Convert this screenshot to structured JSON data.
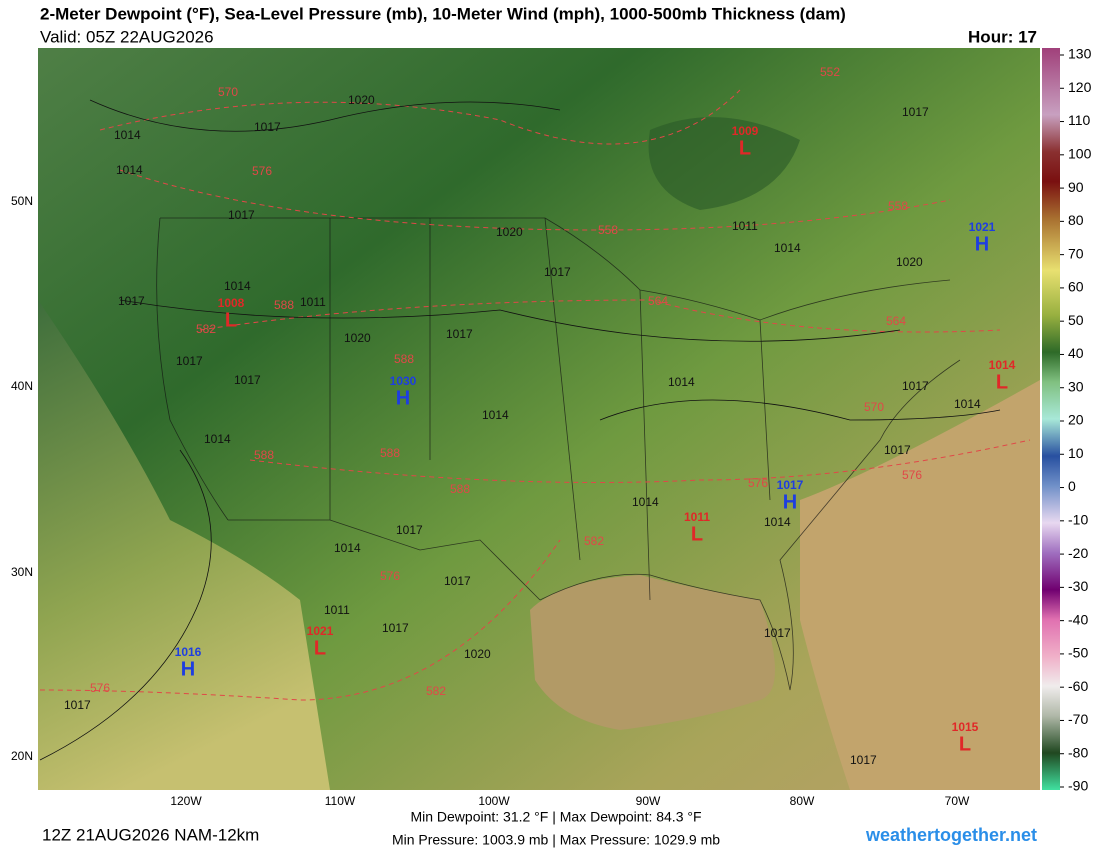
{
  "header": {
    "title": "2-Meter Dewpoint (°F), Sea-Level Pressure (mb), 10-Meter Wind (mph), 1000-500mb Thickness (dam)",
    "valid": "Valid: 05Z 22AUG2026",
    "hour": "Hour: 17"
  },
  "map": {
    "lat_labels": [
      "50N",
      "40N",
      "30N",
      "20N"
    ],
    "lon_labels": [
      "120W",
      "110W",
      "100W",
      "90W",
      "80W",
      "70W"
    ],
    "centers": [
      {
        "value": "1009",
        "letter": "L"
      },
      {
        "value": "1021",
        "letter": "H"
      },
      {
        "value": "1008",
        "letter": "L"
      },
      {
        "value": "1030",
        "letter": "H"
      },
      {
        "value": "1017",
        "letter": "H"
      },
      {
        "value": "1011",
        "letter": "L"
      },
      {
        "value": "1014",
        "letter": "L"
      },
      {
        "value": "1016",
        "letter": "H"
      },
      {
        "value": "1021",
        "letter": "L"
      },
      {
        "value": "1015",
        "letter": "L"
      }
    ],
    "isobar_labels": [
      "1020",
      "1014",
      "1017",
      "1014",
      "1017",
      "1017",
      "1011",
      "1014",
      "1014",
      "1017",
      "1017",
      "1020",
      "1017",
      "1020",
      "1020",
      "1017",
      "1014",
      "1014",
      "1017",
      "1014",
      "1014",
      "1017",
      "1011",
      "1014",
      "1017",
      "1017",
      "1014",
      "1011",
      "1017",
      "1020",
      "1017",
      "1017",
      "1017",
      "1014",
      "1017"
    ],
    "thickness_labels": [
      "570",
      "576",
      "552",
      "558",
      "558",
      "564",
      "564",
      "570",
      "582",
      "588",
      "588",
      "588",
      "588",
      "576",
      "576",
      "582",
      "588",
      "582",
      "576",
      "576"
    ]
  },
  "colorbar": {
    "ticks": [
      130,
      120,
      110,
      100,
      90,
      80,
      70,
      60,
      50,
      40,
      30,
      20,
      10,
      0,
      -10,
      -20,
      -30,
      -40,
      -50,
      -60,
      -70,
      -80,
      -90
    ]
  },
  "footer": {
    "run": "12Z 21AUG2026 NAM-12km",
    "dewpoint_stats": "Min Dewpoint:  31.2 °F | Max Dewpoint:  84.3 °F",
    "pressure_stats": "Min Pressure: 1003.9 mb | Max Pressure: 1029.9 mb",
    "website": "weathertogether.net"
  }
}
